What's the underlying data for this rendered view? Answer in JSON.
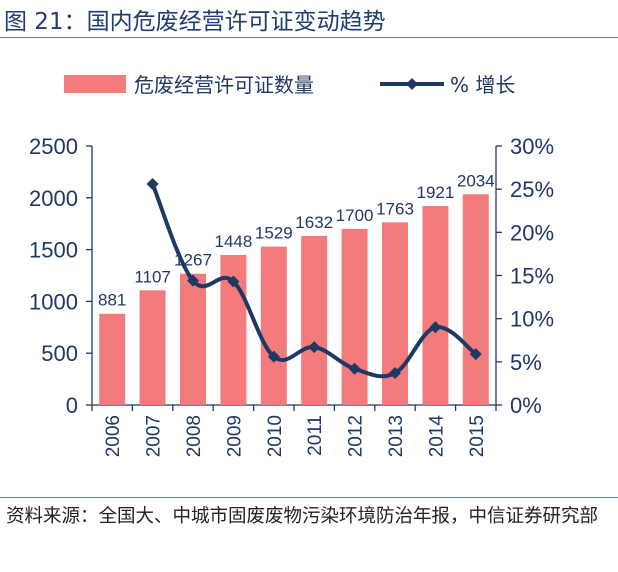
{
  "figure_title": "图 21：国内危废经营许可证变动趋势",
  "source": "资料来源：全国大、中城市固废废物污染环境防治年报，中信证券研究部",
  "colors": {
    "bar": "#f47b7b",
    "line": "#1f3864",
    "axis": "#1f3864"
  },
  "chart_data": {
    "type": "bar",
    "categories": [
      "2006",
      "2007",
      "2008",
      "2009",
      "2010",
      "2011",
      "2012",
      "2013",
      "2014",
      "2015"
    ],
    "series": [
      {
        "name": "危废经营许可证数量",
        "type": "bar",
        "axis": "left",
        "values": [
          881,
          1107,
          1267,
          1448,
          1529,
          1632,
          1700,
          1763,
          1921,
          2034
        ]
      },
      {
        "name": "% 增长",
        "type": "line",
        "axis": "right",
        "values": [
          null,
          25.6,
          14.4,
          14.3,
          5.6,
          6.7,
          4.2,
          3.7,
          9.0,
          5.9
        ]
      }
    ],
    "data_labels": [
      "881",
      "1107",
      "1267",
      "1448",
      "1529",
      "1632",
      "1700",
      "1763",
      "1921",
      "2034"
    ],
    "y_left": {
      "lim": [
        0,
        2500
      ],
      "ticks": [
        0,
        500,
        1000,
        1500,
        2000,
        2500
      ],
      "tick_labels": [
        "0",
        "500",
        "1000",
        "1500",
        "2000",
        "2500"
      ]
    },
    "y_right": {
      "lim": [
        0,
        30
      ],
      "ticks": [
        0,
        5,
        10,
        15,
        20,
        25,
        30
      ],
      "tick_labels": [
        "0%",
        "5%",
        "10%",
        "15%",
        "20%",
        "25%",
        "30%"
      ]
    },
    "legend": {
      "position": "top",
      "entries": [
        "危废经营许可证数量",
        "% 增长"
      ]
    },
    "grid": false
  }
}
